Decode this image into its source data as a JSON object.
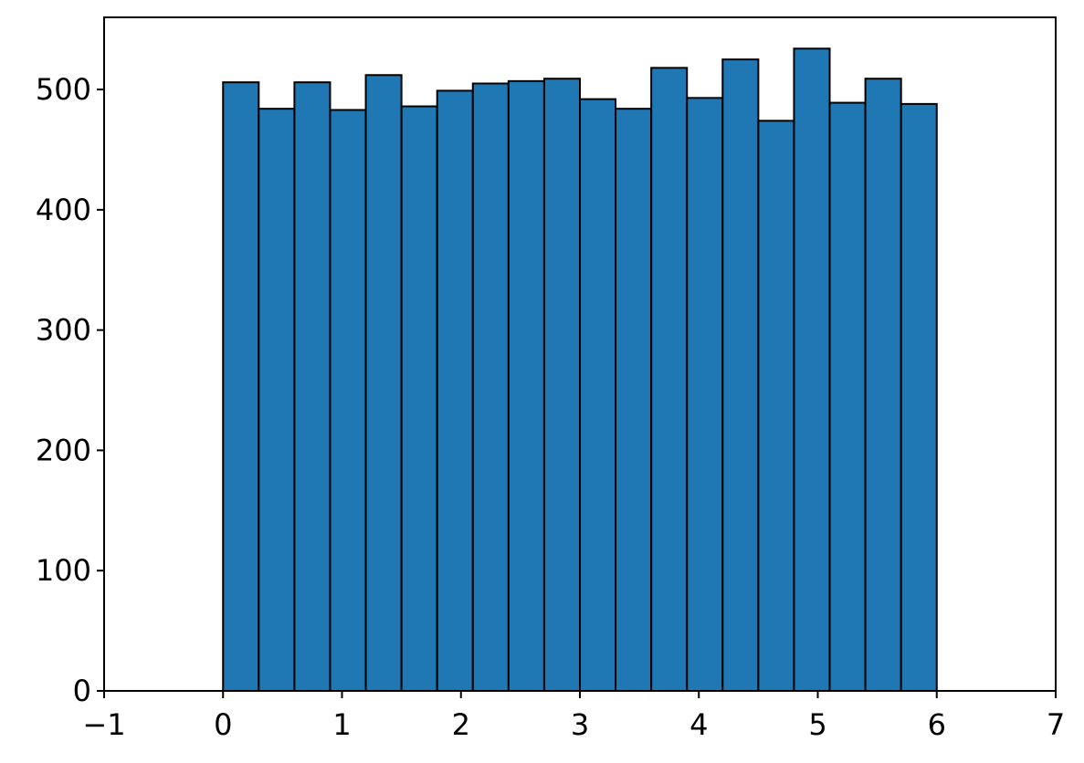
{
  "chart_data": {
    "type": "bar",
    "title": "",
    "xlabel": "",
    "ylabel": "",
    "xlim": [
      -1,
      7
    ],
    "ylim": [
      0,
      560
    ],
    "bin_edges": [
      0,
      0.3,
      0.6,
      0.9,
      1.2,
      1.5,
      1.8,
      2.1,
      2.4,
      2.7,
      3.0,
      3.3,
      3.6,
      3.9,
      4.2,
      4.5,
      4.8,
      5.1,
      5.4,
      5.7,
      6.0
    ],
    "values": [
      506,
      484,
      506,
      483,
      512,
      486,
      499,
      505,
      507,
      509,
      492,
      484,
      518,
      493,
      525,
      474,
      534,
      489,
      509,
      488
    ],
    "x_ticks": [
      -1,
      0,
      1,
      2,
      3,
      4,
      5,
      6,
      7
    ],
    "x_tick_labels": [
      "−1",
      "0",
      "1",
      "2",
      "3",
      "4",
      "5",
      "6",
      "7"
    ],
    "y_ticks": [
      0,
      100,
      200,
      300,
      400,
      500
    ],
    "y_tick_labels": [
      "0",
      "100",
      "200",
      "300",
      "400",
      "500"
    ],
    "bar_color": "#1f77b4",
    "edge_color": "#000000",
    "grid": false,
    "legend": "none"
  }
}
